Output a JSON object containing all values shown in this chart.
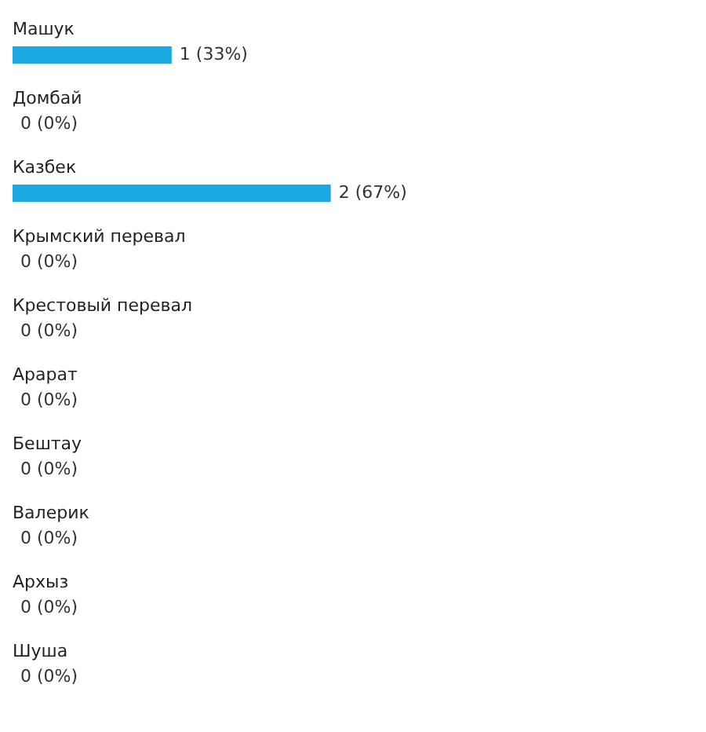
{
  "chart_data": {
    "type": "bar",
    "orientation": "horizontal",
    "color": "#1aa9e3",
    "categories": [
      "Машук",
      "Домбай",
      "Казбек",
      "Крымский перевал",
      "Крестовый перевал",
      "Арарат",
      "Бештау",
      "Валерик",
      "Архыз",
      "Шуша"
    ],
    "values": [
      1,
      0,
      2,
      0,
      0,
      0,
      0,
      0,
      0,
      0
    ],
    "value_labels": [
      "1 (33%)",
      "0 (0%)",
      "2 (67%)",
      "0 (0%)",
      "0 (0%)",
      "0 (0%)",
      "0 (0%)",
      "0 (0%)",
      "0 (0%)",
      "0 (0%)"
    ]
  }
}
